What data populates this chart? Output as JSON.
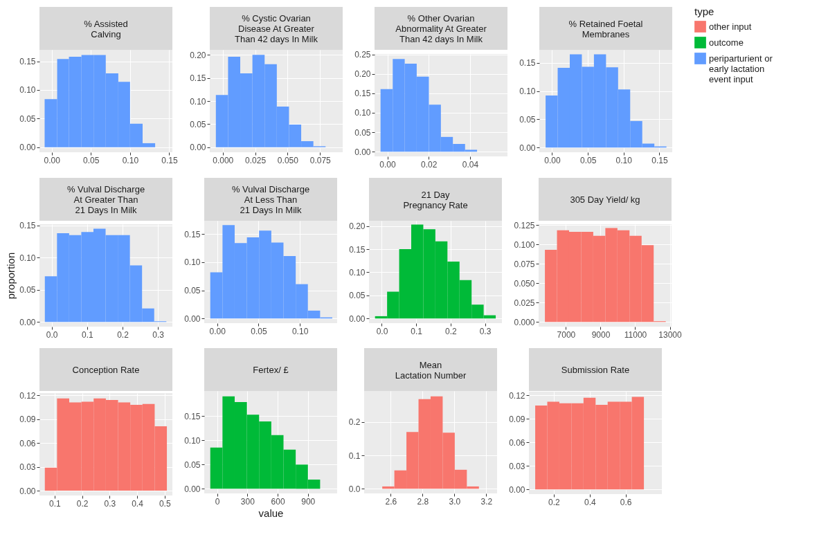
{
  "chart_data": [
    {
      "type": "histogram",
      "title": "% Assisted\nCalving",
      "bins": [
        -0.009,
        0.007,
        0.022,
        0.038,
        0.054,
        0.069,
        0.085,
        0.1,
        0.116,
        0.132
      ],
      "series": [
        {
          "name": "periparturient or\nearly lactation\nevent input",
          "color": "#619cff",
          "values": [
            0.084,
            0.154,
            0.158,
            0.161,
            0.161,
            0.129,
            0.114,
            0.041,
            0.007
          ]
        }
      ],
      "xlim": [
        -0.0156,
        0.154
      ],
      "ylim": [
        -0.0088,
        0.17
      ],
      "xticks": [
        {
          "value": 0,
          "label": "0.00"
        },
        0.05,
        {
          "value": 0.1,
          "label": "0.10"
        },
        0.15
      ],
      "yticks": [
        {
          "value": 0,
          "label": "0.00"
        },
        0.05,
        {
          "value": 0.1,
          "label": "0.10"
        },
        0.15
      ],
      "grid": true
    },
    {
      "type": "histogram",
      "title": "% Cystic Ovarian\nDisease At Greater\nThan 42 days In Milk",
      "bins": [
        -0.0053,
        0.0041,
        0.0135,
        0.0229,
        0.0323,
        0.0417,
        0.0511,
        0.0605,
        0.0699,
        0.0793
      ],
      "series": [
        {
          "name": "periparturient or\nearly lactation\nevent input",
          "color": "#619cff",
          "values": [
            0.113,
            0.196,
            0.16,
            0.2,
            0.18,
            0.088,
            0.049,
            0.013,
            0.002
          ]
        }
      ],
      "xlim": [
        -0.01,
        0.0925
      ],
      "ylim": [
        -0.011,
        0.211
      ],
      "xticks": [
        {
          "value": 0,
          "label": "0.000"
        },
        0.025,
        {
          "value": 0.05,
          "label": "0.050"
        },
        0.075
      ],
      "yticks": [
        {
          "value": 0,
          "label": "0.00"
        },
        0.05,
        {
          "value": 0.1,
          "label": "0.10"
        },
        0.15,
        {
          "value": 0.2,
          "label": "0.20"
        }
      ],
      "grid": true
    },
    {
      "type": "histogram",
      "title": "% Other Ovarian\nAbnormality At Greater\nThan 42 days In Milk",
      "bins": [
        -0.0033,
        0.0026,
        0.0084,
        0.0142,
        0.0201,
        0.0259,
        0.0317,
        0.0376,
        0.0434
      ],
      "series": [
        {
          "name": "periparturient or\nearly lactation\nevent input",
          "color": "#619cff",
          "values": [
            0.161,
            0.238,
            0.226,
            0.193,
            0.121,
            0.038,
            0.02,
            0.005
          ]
        }
      ],
      "xlim": [
        -0.0062,
        0.0581
      ],
      "ylim": [
        -0.012,
        0.251
      ],
      "xticks": [
        {
          "value": 0,
          "label": "0.00"
        },
        0.02,
        0.04
      ],
      "yticks": [
        {
          "value": 0,
          "label": "0.00"
        },
        0.05,
        {
          "value": 0.1,
          "label": "0.10"
        },
        0.15,
        {
          "value": 0.2,
          "label": "0.20"
        },
        0.25
      ],
      "grid": true
    },
    {
      "type": "histogram",
      "title": "% Retained Foetal\nMembranes",
      "bins": [
        -0.0091,
        0.0078,
        0.0247,
        0.0416,
        0.0585,
        0.0754,
        0.0923,
        0.1092,
        0.1261,
        0.143,
        0.1599
      ],
      "series": [
        {
          "name": "periparturient or\nearly lactation\nevent input",
          "color": "#619cff",
          "values": [
            0.092,
            0.141,
            0.165,
            0.143,
            0.165,
            0.142,
            0.103,
            0.047,
            0.007,
            0.002
          ]
        }
      ],
      "xlim": [
        -0.0179,
        0.168
      ],
      "ylim": [
        -0.0083,
        0.173
      ],
      "xticks": [
        {
          "value": 0,
          "label": "0.00"
        },
        0.05,
        {
          "value": 0.1,
          "label": "0.10"
        },
        0.15
      ],
      "yticks": [
        {
          "value": 0,
          "label": "0.00"
        },
        0.05,
        {
          "value": 0.1,
          "label": "0.10"
        },
        0.15
      ],
      "grid": true
    },
    {
      "type": "histogram",
      "title": "% Vulval Discharge\nAt Greater Than\n21 Days In Milk",
      "ylabel": "proportion",
      "bins": [
        -0.0193,
        0.015,
        0.0493,
        0.0836,
        0.1179,
        0.1522,
        0.1865,
        0.2208,
        0.2551,
        0.2894,
        0.3237
      ],
      "series": [
        {
          "name": "periparturient or\nearly lactation\nevent input",
          "color": "#619cff",
          "values": [
            0.071,
            0.138,
            0.135,
            0.14,
            0.145,
            0.135,
            0.135,
            0.088,
            0.021,
            0.001
          ]
        }
      ],
      "xlim": [
        -0.0345,
        0.3407
      ],
      "ylim": [
        -0.0073,
        0.152
      ],
      "xticks": [
        {
          "value": 0,
          "label": "0.0"
        },
        0.1,
        0.2,
        0.3
      ],
      "yticks": [
        {
          "value": 0,
          "label": "0.00"
        },
        0.05,
        {
          "value": 0.1,
          "label": "0.10"
        },
        0.15
      ],
      "grid": true
    },
    {
      "type": "histogram",
      "title": "% Vulval Discharge\nAt Less Than\n21 Days In Milk",
      "bins": [
        -0.0083,
        0.0065,
        0.0212,
        0.036,
        0.0507,
        0.0655,
        0.0802,
        0.095,
        0.1097,
        0.1245,
        0.1392
      ],
      "series": [
        {
          "name": "periparturient or\nearly lactation\nevent input",
          "color": "#619cff",
          "values": [
            0.082,
            0.166,
            0.134,
            0.144,
            0.156,
            0.135,
            0.111,
            0.061,
            0.014,
            0.002
          ]
        }
      ],
      "xlim": [
        -0.0156,
        0.1451
      ],
      "ylim": [
        -0.0083,
        0.1736
      ],
      "xticks": [
        {
          "value": 0,
          "label": "0.00"
        },
        0.05,
        {
          "value": 0.1,
          "label": "0.10"
        }
      ],
      "yticks": [
        {
          "value": 0,
          "label": "0.00"
        },
        0.05,
        {
          "value": 0.1,
          "label": "0.10"
        },
        0.15
      ],
      "grid": true
    },
    {
      "type": "histogram",
      "title": "21 Day\nPregnancy Rate",
      "bins": [
        -0.0197,
        0.0154,
        0.0505,
        0.0856,
        0.1207,
        0.1558,
        0.1909,
        0.226,
        0.2611,
        0.2962,
        0.3313
      ],
      "series": [
        {
          "name": "outcome",
          "color": "#00ba38",
          "values": [
            0.005,
            0.058,
            0.15,
            0.203,
            0.193,
            0.167,
            0.123,
            0.083,
            0.03,
            0.007
          ]
        }
      ],
      "xlim": [
        -0.0372,
        0.3493
      ],
      "ylim": [
        -0.0101,
        0.2114
      ],
      "xticks": [
        {
          "value": 0,
          "label": "0.0"
        },
        0.1,
        0.2,
        0.3
      ],
      "yticks": [
        {
          "value": 0,
          "label": "0.00"
        },
        0.05,
        {
          "value": 0.1,
          "label": "0.10"
        },
        0.15,
        {
          "value": 0.2,
          "label": "0.20"
        }
      ],
      "grid": true
    },
    {
      "type": "histogram",
      "title": "305 Day Yield/ kg",
      "legend_title": "type",
      "legend": "right",
      "bins": [
        5786,
        6484,
        7182,
        7880,
        8578,
        9276,
        9974,
        10672,
        11370,
        12068,
        12766
      ],
      "series": [
        {
          "name": "other input",
          "color": "#f8766d",
          "values": [
            0.093,
            0.118,
            0.116,
            0.116,
            0.111,
            0.121,
            0.118,
            0.111,
            0.099,
            0.001
          ]
        }
      ],
      "xlim": [
        5423,
        13099
      ],
      "ylim": [
        -0.006,
        0.1259
      ],
      "xticks": [
        7000,
        9000,
        11000,
        13000
      ],
      "yticks": [
        {
          "value": 0,
          "label": "0.000"
        },
        0.025,
        {
          "value": 0.05,
          "label": "0.050"
        },
        0.075,
        {
          "value": 0.1,
          "label": "0.100"
        },
        0.125
      ],
      "grid": true
    },
    {
      "type": "histogram",
      "title": "Conception Rate",
      "bins": [
        0.0644,
        0.1088,
        0.1532,
        0.1976,
        0.242,
        0.2864,
        0.3308,
        0.3752,
        0.4196,
        0.464,
        0.5084
      ],
      "series": [
        {
          "name": "other input",
          "color": "#f8766d",
          "values": [
            0.029,
            0.116,
            0.111,
            0.112,
            0.116,
            0.114,
            0.111,
            0.108,
            0.109,
            0.081
          ]
        }
      ],
      "xlim": [
        0.0449,
        0.5284
      ],
      "ylim": [
        -0.006,
        0.1228
      ],
      "xticks": [
        0.1,
        0.2,
        0.3,
        0.4,
        0.5
      ],
      "yticks": [
        {
          "value": 0,
          "label": "0.00"
        },
        0.03,
        0.06,
        0.09,
        0.12
      ],
      "grid": true
    },
    {
      "type": "histogram",
      "title": "Fertex/ £",
      "xlabel": "value",
      "bins": [
        -68,
        53,
        174,
        295,
        416,
        537,
        658,
        779,
        900,
        1021
      ],
      "series": [
        {
          "name": "outcome",
          "color": "#00ba38",
          "values": [
            0.085,
            0.191,
            0.179,
            0.153,
            0.139,
            0.111,
            0.081,
            0.05,
            0.019
          ]
        }
      ],
      "xlim": [
        -128,
        1190
      ],
      "ylim": [
        -0.0095,
        0.2019
      ],
      "xticks": [
        0,
        300,
        600,
        900
      ],
      "yticks": [
        {
          "value": 0,
          "label": "0.00"
        },
        0.05,
        {
          "value": 0.1,
          "label": "0.10"
        },
        0.15
      ],
      "grid": true
    },
    {
      "type": "histogram",
      "title": "Mean\nLactation Number",
      "bins": [
        2.5468,
        2.6227,
        2.6986,
        2.7745,
        2.8504,
        2.9263,
        3.0022,
        3.0781,
        3.154
      ],
      "series": [
        {
          "name": "other input",
          "color": "#f8766d",
          "values": [
            0.007,
            0.055,
            0.17,
            0.269,
            0.277,
            0.168,
            0.057,
            0.007
          ]
        }
      ],
      "xlim": [
        2.433,
        3.268
      ],
      "ylim": [
        -0.0139,
        0.2932
      ],
      "xticks": [
        2.6,
        2.8,
        {
          "value": 3,
          "label": "3.0"
        },
        3.2
      ],
      "yticks": [
        {
          "value": 0,
          "label": "0.0"
        },
        0.1,
        0.2
      ],
      "grid": true
    },
    {
      "type": "histogram",
      "title": "Submission Rate",
      "bins": [
        0.0963,
        0.1636,
        0.2309,
        0.2982,
        0.3655,
        0.4328,
        0.5001,
        0.5674,
        0.6347,
        0.702
      ],
      "series": [
        {
          "name": "other input",
          "color": "#f8766d",
          "values": [
            0.107,
            0.112,
            0.11,
            0.11,
            0.117,
            0.108,
            0.112,
            0.112,
            0.118
          ]
        }
      ],
      "xlim": [
        0.0613,
        0.802
      ],
      "ylim": [
        -0.0059,
        0.1247
      ],
      "xticks": [
        0.2,
        0.4,
        0.6
      ],
      "yticks": [
        {
          "value": 0,
          "label": "0.00"
        },
        0.03,
        0.06,
        0.09,
        0.12
      ],
      "grid": true
    }
  ]
}
